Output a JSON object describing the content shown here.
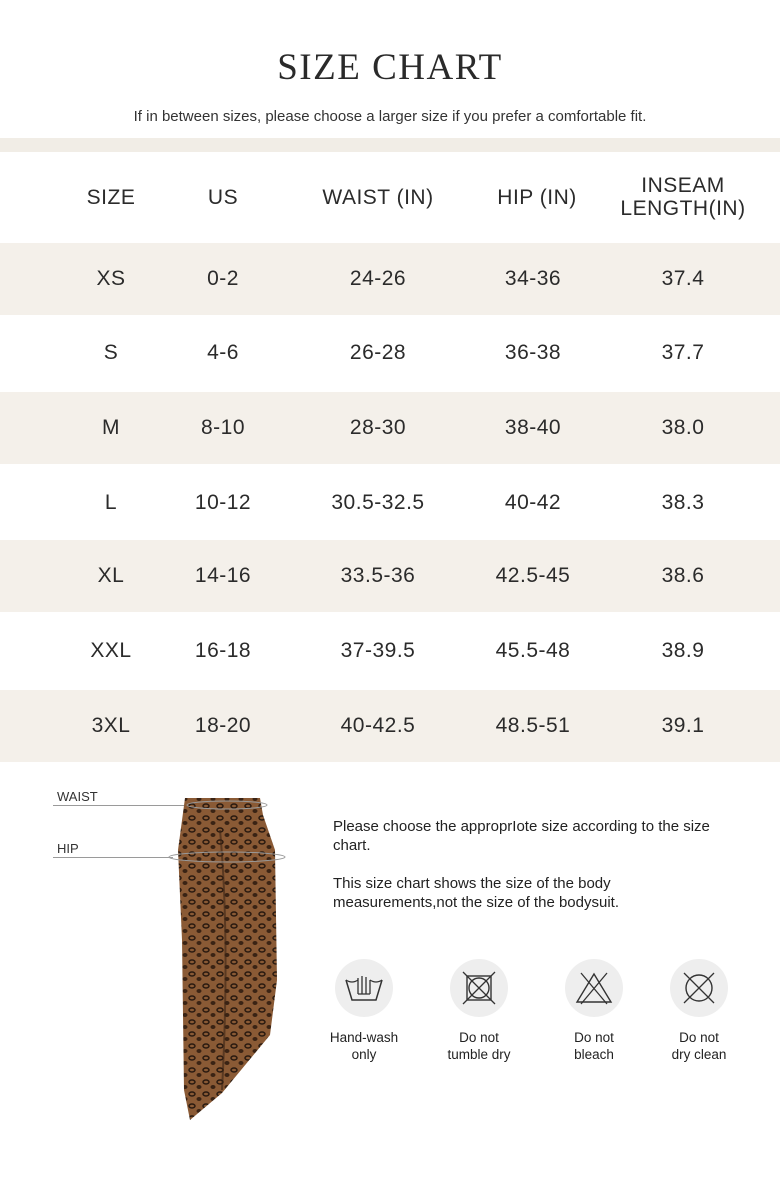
{
  "title": "SIZE CHART",
  "subtitle": "If in between sizes, please choose a larger size if you prefer a comfortable fit.",
  "table": {
    "headers": [
      "SIZE",
      "US",
      "WAIST (IN)",
      "HIP (IN)",
      "INSEAM LENGTH(IN)"
    ],
    "header_inseam_line1": "INSEAM",
    "header_inseam_line2": "LENGTH(IN)",
    "rows": [
      [
        "XS",
        "0-2",
        "24-26",
        "34-36",
        "37.4"
      ],
      [
        "S",
        "4-6",
        "26-28",
        "36-38",
        "37.7"
      ],
      [
        "M",
        "8-10",
        "28-30",
        "38-40",
        "38.0"
      ],
      [
        "L",
        "10-12",
        "30.5-32.5",
        "40-42",
        "38.3"
      ],
      [
        "XL",
        "14-16",
        "33.5-36",
        "42.5-45",
        "38.6"
      ],
      [
        "XXL",
        "16-18",
        "37-39.5",
        "45.5-48",
        "38.9"
      ],
      [
        "3XL",
        "18-20",
        "40-42.5",
        "48.5-51",
        "39.1"
      ]
    ]
  },
  "diagram": {
    "waist_label": "WAIST",
    "hip_label": "HIP"
  },
  "notes": [
    "Please choose the approprIote size according to the size chart.",
    "This size chart shows the size of the body measurements,not the size of the bodysuit."
  ],
  "care": [
    {
      "icon": "hand-wash-icon",
      "line1": "Hand-wash",
      "line2": "only"
    },
    {
      "icon": "no-tumble-dry-icon",
      "line1": "Do not",
      "line2": "tumble dry"
    },
    {
      "icon": "no-bleach-icon",
      "line1": "Do not",
      "line2": "bleach"
    },
    {
      "icon": "no-dry-clean-icon",
      "line1": "Do not",
      "line2": "dry clean"
    }
  ],
  "colors": {
    "band": "#f4f0ea",
    "text": "#2b2b2b",
    "skirt": "#5a3a22"
  }
}
